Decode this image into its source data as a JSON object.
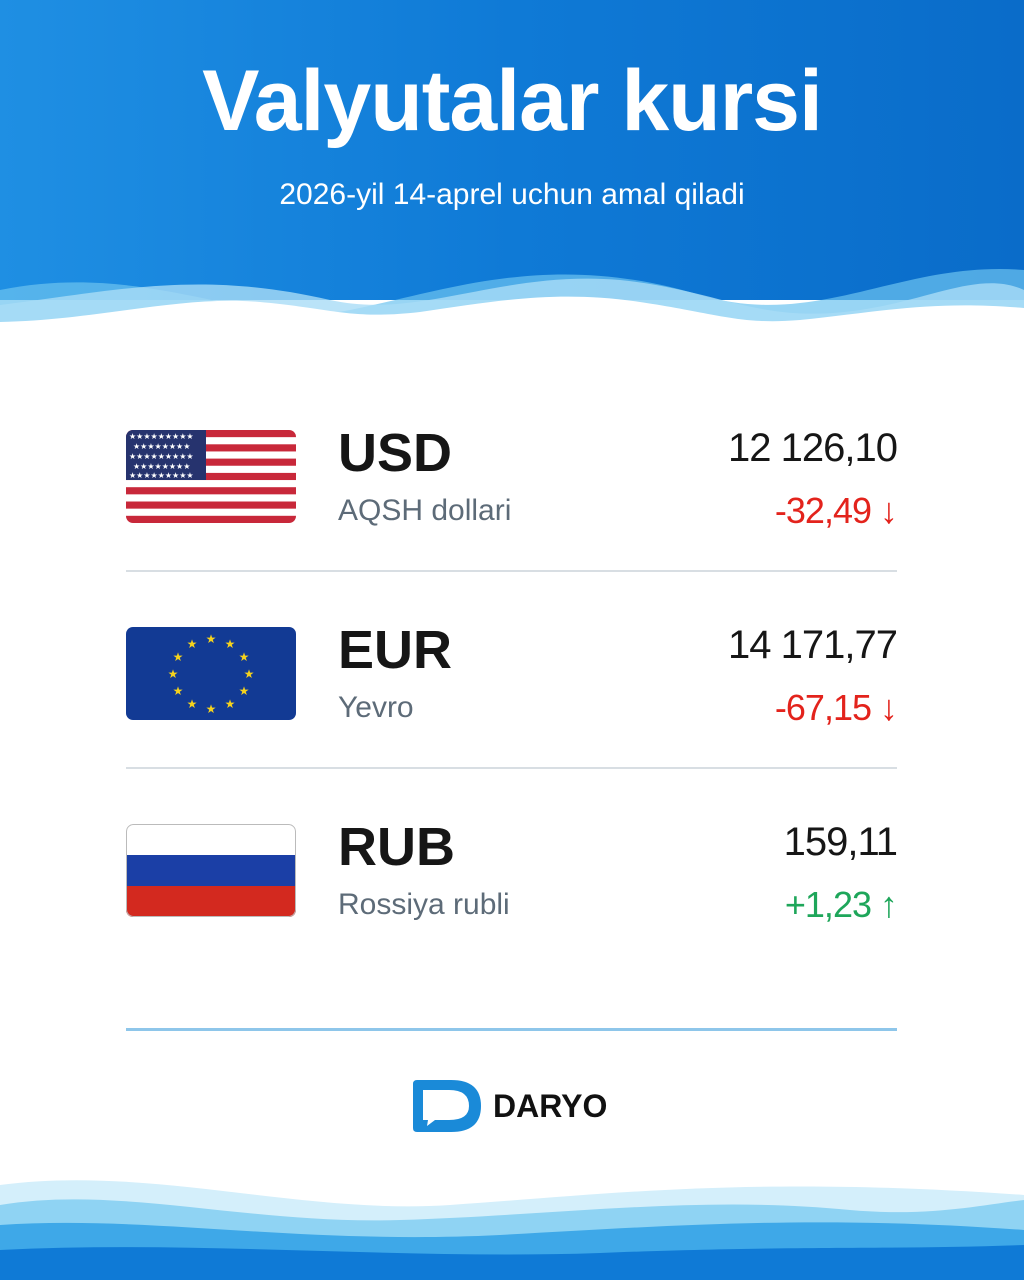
{
  "header": {
    "title": "Valyutalar kursi",
    "subtitle": "2026-yil 14-aprel uchun amal qiladi"
  },
  "colors": {
    "brand_blue": "#0f7ad6",
    "down": "#e3231c",
    "up": "#1ea65a"
  },
  "rates": [
    {
      "code": "USD",
      "name": "AQSH dollari",
      "value": "12 126,10",
      "change": "-32,49",
      "direction": "down",
      "flag": "us-flag"
    },
    {
      "code": "EUR",
      "name": "Yevro",
      "value": "14 171,77",
      "change": "-67,15",
      "direction": "down",
      "flag": "eu-flag"
    },
    {
      "code": "RUB",
      "name": "Rossiya rubli",
      "value": "159,11",
      "change": "+1,23",
      "direction": "up",
      "flag": "ru-flag"
    }
  ],
  "footer": {
    "logo_text": "DARYO"
  }
}
